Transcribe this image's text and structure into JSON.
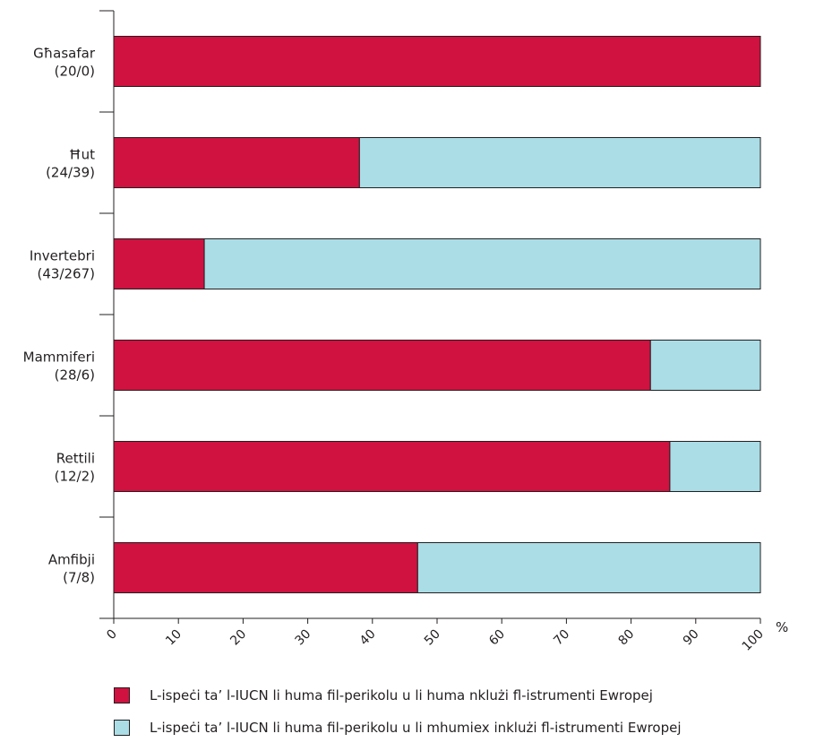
{
  "chart_data": {
    "type": "bar",
    "orientation": "horizontal",
    "stacked": true,
    "categories": [
      {
        "name": "Għasafar",
        "counts": "(20/0)"
      },
      {
        "name": "Ħut",
        "counts": "(24/39)"
      },
      {
        "name": "Invertebri",
        "counts": "(43/267)"
      },
      {
        "name": "Mammiferi",
        "counts": "(28/6)"
      },
      {
        "name": "Rettili",
        "counts": "(12/2)"
      },
      {
        "name": "Amfibji",
        "counts": "(7/8)"
      }
    ],
    "series": [
      {
        "name": "L-ispeċi ta’ l-IUCN li huma fil-perikolu u li huma nklużi fl-istrumenti Ewropej",
        "color": "#cf1240",
        "values": [
          100,
          38,
          14,
          83,
          86,
          47
        ]
      },
      {
        "name": "L-ispeċi ta’ l-IUCN li huma fil-perikolu u li mhumiex inklużi fl-istrumenti Ewropej",
        "color": "#aadde6",
        "values": [
          0,
          62,
          86,
          17,
          14,
          53
        ]
      }
    ],
    "x_ticks": [
      "0",
      "10",
      "20",
      "30",
      "40",
      "50",
      "60",
      "70",
      "80",
      "90",
      "100"
    ],
    "xlim": [
      0,
      100
    ],
    "unit": "%",
    "grid": false,
    "legend_position": "bottom"
  }
}
